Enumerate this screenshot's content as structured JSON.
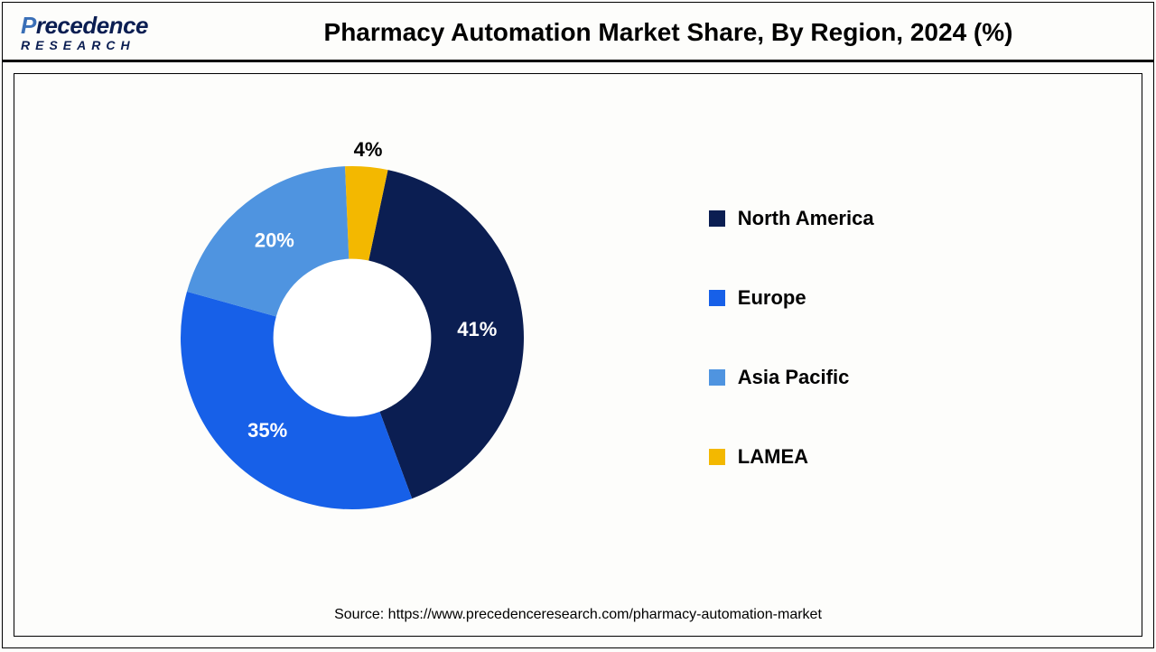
{
  "logo": {
    "brand_prefix": "P",
    "brand_rest": "recedence",
    "subline": "RESEARCH"
  },
  "title": "Pharmacy Automation Market Share, By Region, 2024 (%)",
  "chart": {
    "type": "donut",
    "inner_radius_ratio": 0.46,
    "background_color": "#ffffff",
    "label_fontsize": 22,
    "legend_fontsize": 22,
    "slices": [
      {
        "label": "North America",
        "value": 41,
        "color": "#0b1e52",
        "pct_label": "41%",
        "label_color": "#ffffff"
      },
      {
        "label": "Europe",
        "value": 35,
        "color": "#1760e8",
        "pct_label": "35%",
        "label_color": "#ffffff"
      },
      {
        "label": "Asia Pacific",
        "value": 20,
        "color": "#4f94e0",
        "pct_label": "20%",
        "label_color": "#ffffff"
      },
      {
        "label": "LAMEA",
        "value": 4,
        "color": "#f3b800",
        "pct_label": "4%",
        "label_color": "#000000"
      }
    ],
    "start_angle_deg": 12
  },
  "source": "Source: https://www.precedenceresearch.com/pharmacy-automation-market"
}
